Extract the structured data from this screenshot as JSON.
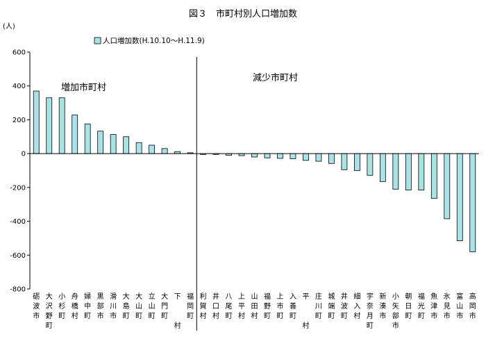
{
  "chart_data": {
    "type": "bar",
    "title": "図３　市町村別人口増加数",
    "ylabel": "(人)",
    "ylim": [
      -800,
      600
    ],
    "yticks": [
      600,
      400,
      200,
      0,
      -200,
      -400,
      -600,
      -800
    ],
    "legend": {
      "label": "人口増加数(H.10.10～H.11.9)",
      "position": "top-left",
      "color": "#a9e3e6"
    },
    "annotations": {
      "increase": "増加市町村",
      "decrease": "減少市町村"
    },
    "grid": false,
    "categories": [
      [
        "砺",
        "波",
        "市"
      ],
      [
        "大",
        "沢",
        "野",
        "町"
      ],
      [
        "小",
        "杉",
        "町"
      ],
      [
        "舟",
        "橋",
        "村"
      ],
      [
        "婦",
        "中",
        "町"
      ],
      [
        "黒",
        "部",
        "市"
      ],
      [
        "滑",
        "川",
        "市"
      ],
      [
        "大",
        "島",
        "町"
      ],
      [
        "大",
        "山",
        "町"
      ],
      [
        "立",
        "山",
        "町"
      ],
      [
        "大",
        "門",
        "町"
      ],
      [
        "下",
        "",
        "",
        "村"
      ],
      [
        "福",
        "岡",
        "町"
      ],
      [
        "利",
        "賀",
        "村"
      ],
      [
        "井",
        "口",
        "村"
      ],
      [
        "八",
        "尾",
        "町"
      ],
      [
        "上",
        "平",
        "村"
      ],
      [
        "山",
        "田",
        "村"
      ],
      [
        "福",
        "野",
        "町"
      ],
      [
        "上",
        "市",
        "町"
      ],
      [
        "入",
        "善",
        "町"
      ],
      [
        "平",
        "",
        "",
        "村"
      ],
      [
        "庄",
        "川",
        "町"
      ],
      [
        "城",
        "端",
        "町"
      ],
      [
        "井",
        "波",
        "町"
      ],
      [
        "細",
        "入",
        "村"
      ],
      [
        "宇",
        "奈",
        "月",
        "町"
      ],
      [
        "新",
        "湊",
        "市"
      ],
      [
        "小",
        "矢",
        "部",
        "市"
      ],
      [
        "朝",
        "日",
        "町"
      ],
      [
        "福",
        "光",
        "町"
      ],
      [
        "魚",
        "津",
        "市"
      ],
      [
        "氷",
        "見",
        "市"
      ],
      [
        "富",
        "山",
        "市"
      ],
      [
        "高",
        "岡",
        "市"
      ]
    ],
    "values": [
      370,
      330,
      330,
      228,
      175,
      133,
      113,
      100,
      65,
      50,
      30,
      12,
      5,
      -5,
      -5,
      -10,
      -12,
      -20,
      -25,
      -28,
      -30,
      -40,
      -45,
      -58,
      -95,
      -100,
      -128,
      -165,
      -210,
      -215,
      -215,
      -265,
      -385,
      -515,
      -580
    ]
  }
}
